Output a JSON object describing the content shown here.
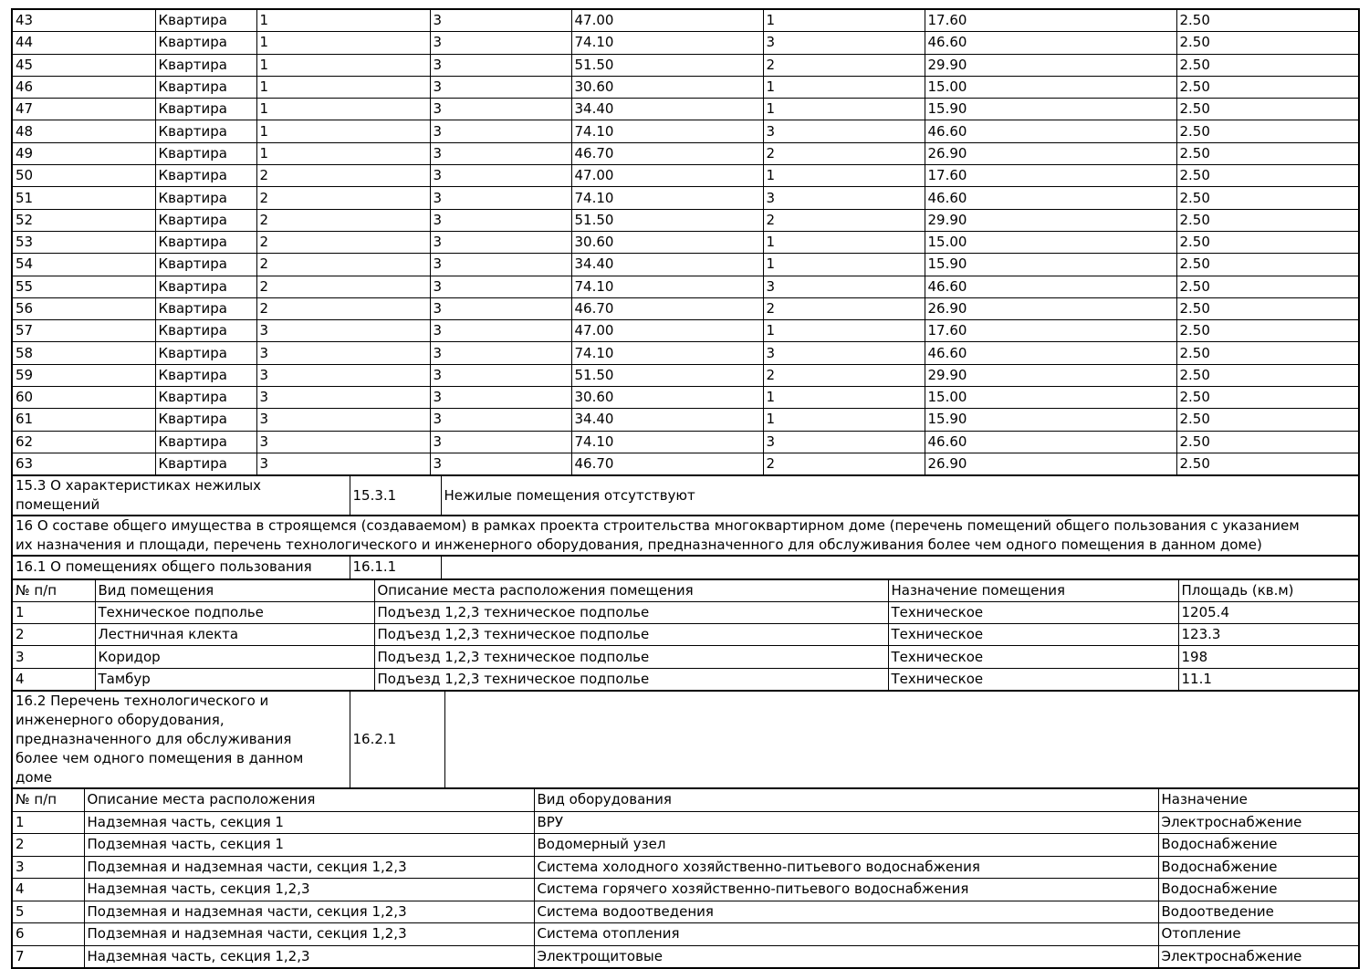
{
  "document": {
    "apartments_table": {
      "rows": [
        [
          "43",
          "Квартира",
          "1",
          "3",
          "47.00",
          "1",
          "17.60",
          "2.50"
        ],
        [
          "44",
          "Квартира",
          "1",
          "3",
          "74.10",
          "3",
          "46.60",
          "2.50"
        ],
        [
          "45",
          "Квартира",
          "1",
          "3",
          "51.50",
          "2",
          "29.90",
          "2.50"
        ],
        [
          "46",
          "Квартира",
          "1",
          "3",
          "30.60",
          "1",
          "15.00",
          "2.50"
        ],
        [
          "47",
          "Квартира",
          "1",
          "3",
          "34.40",
          "1",
          "15.90",
          "2.50"
        ],
        [
          "48",
          "Квартира",
          "1",
          "3",
          "74.10",
          "3",
          "46.60",
          "2.50"
        ],
        [
          "49",
          "Квартира",
          "1",
          "3",
          "46.70",
          "2",
          "26.90",
          "2.50"
        ],
        [
          "50",
          "Квартира",
          "2",
          "3",
          "47.00",
          "1",
          "17.60",
          "2.50"
        ],
        [
          "51",
          "Квартира",
          "2",
          "3",
          "74.10",
          "3",
          "46.60",
          "2.50"
        ],
        [
          "52",
          "Квартира",
          "2",
          "3",
          "51.50",
          "2",
          "29.90",
          "2.50"
        ],
        [
          "53",
          "Квартира",
          "2",
          "3",
          "30.60",
          "1",
          "15.00",
          "2.50"
        ],
        [
          "54",
          "Квартира",
          "2",
          "3",
          "34.40",
          "1",
          "15.90",
          "2.50"
        ],
        [
          "55",
          "Квартира",
          "2",
          "3",
          "74.10",
          "3",
          "46.60",
          "2.50"
        ],
        [
          "56",
          "Квартира",
          "2",
          "3",
          "46.70",
          "2",
          "26.90",
          "2.50"
        ],
        [
          "57",
          "Квартира",
          "3",
          "3",
          "47.00",
          "1",
          "17.60",
          "2.50"
        ],
        [
          "58",
          "Квартира",
          "3",
          "3",
          "74.10",
          "3",
          "46.60",
          "2.50"
        ],
        [
          "59",
          "Квартира",
          "3",
          "3",
          "51.50",
          "2",
          "29.90",
          "2.50"
        ],
        [
          "60",
          "Квартира",
          "3",
          "3",
          "30.60",
          "1",
          "15.00",
          "2.50"
        ],
        [
          "61",
          "Квартира",
          "3",
          "3",
          "34.40",
          "1",
          "15.90",
          "2.50"
        ],
        [
          "62",
          "Квартира",
          "3",
          "3",
          "74.10",
          "3",
          "46.60",
          "2.50"
        ],
        [
          "63",
          "Квартира",
          "3",
          "3",
          "46.70",
          "2",
          "26.90",
          "2.50"
        ]
      ]
    },
    "section_15_3": {
      "label_lines": [
        "15.3 О характеристиках нежилых",
        "помещений"
      ],
      "code": "15.3.1",
      "value": "Нежилые помещения отсутствуют"
    },
    "section_16": {
      "text_lines": [
        "16 О составе общего имущества в строящемся (создаваемом) в рамках проекта строительства многоквартирном доме (перечень помещений общего пользования с указанием",
        "их назначения и площади, перечень технологического и инженерного оборудования, предназначенного для обслуживания более чем одного помещения в данном доме)"
      ]
    },
    "section_16_1": {
      "label": "16.1 О помещениях общего пользования",
      "code": "16.1.1",
      "value": ""
    },
    "common_rooms_table": {
      "headers": [
        "№ п/п",
        "Вид помещения",
        "Описание места расположения помещения",
        "Назначение помещения",
        "Площадь (кв.м)"
      ],
      "rows": [
        [
          "1",
          "Техническое подполье",
          "Подъезд 1,2,3 техническое подполье",
          "Техническое",
          "1205.4"
        ],
        [
          "2",
          "Лестничная клекта",
          "Подъезд 1,2,3 техническое подполье",
          "Техническое",
          "123.3"
        ],
        [
          "3",
          "Коридор",
          "Подъезд 1,2,3 техническое подполье",
          "Техническое",
          "198"
        ],
        [
          "4",
          "Тамбур",
          "Подъезд 1,2,3 техническое подполье",
          "Техническое",
          "11.1"
        ]
      ]
    },
    "section_16_2": {
      "label_lines": [
        "16.2 Перечень технологического и",
        "инженерного оборудования,",
        "предназначенного для обслуживания",
        "более чем одного помещения в данном",
        "доме"
      ],
      "code": "16.2.1",
      "value": ""
    },
    "equipment_table": {
      "headers": [
        "№ п/п",
        "Описание места расположения",
        "Вид оборудования",
        "Назначение"
      ],
      "rows": [
        [
          "1",
          "Надземная часть, секция 1",
          "ВРУ",
          "Электроснабжение"
        ],
        [
          "2",
          "Подземная часть, секция 1",
          "Водомерный узел",
          "Водоснабжение"
        ],
        [
          "3",
          "Подземная и надземная части, секция 1,2,3",
          "Система холодного хозяйственно-питьевого водоснабжения",
          "Водоснабжение"
        ],
        [
          "4",
          "Надземная часть, секция 1,2,3",
          "Система горячего хозяйственно-питьевого водоснабжения",
          "Водоснабжение"
        ],
        [
          "5",
          "Подземная и надземная части, секция 1,2,3",
          "Система водоотведения",
          "Водоотведение"
        ],
        [
          "6",
          "Подземная и надземная части, секция 1,2,3",
          "Система отопления",
          "Отопление"
        ],
        [
          "7",
          "Надземная часть, секция 1,2,3",
          "Электрощитовые",
          "Электроснабжение"
        ]
      ]
    }
  },
  "colors": {
    "text": "#000000",
    "border": "#000000",
    "background": "#ffffff"
  }
}
